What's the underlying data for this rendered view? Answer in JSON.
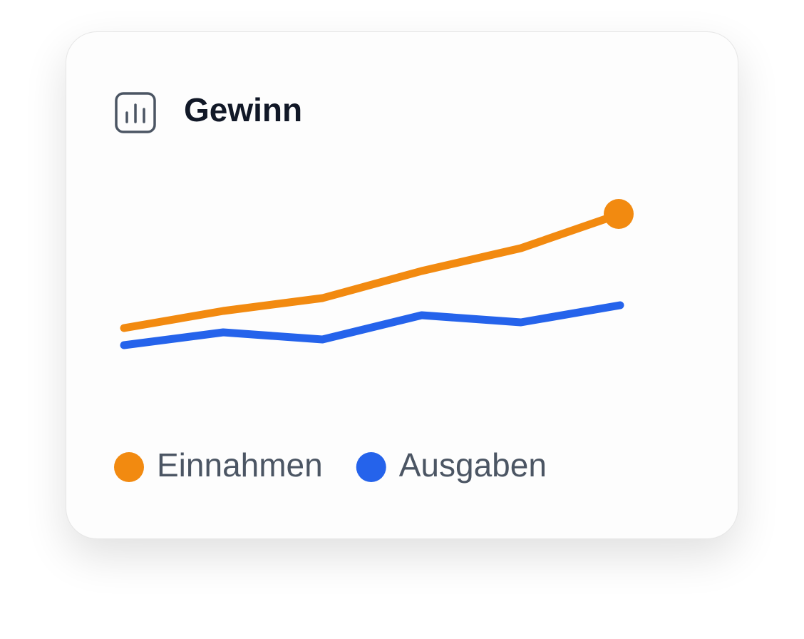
{
  "chart_data": {
    "type": "line",
    "title": "Gewinn",
    "series": [
      {
        "name": "Einnahmen",
        "color": "#f28a10",
        "values": [
          15,
          21,
          25.5,
          35,
          43,
          55
        ]
      },
      {
        "name": "Ausgaben",
        "color": "#2563eb",
        "values": [
          9,
          13.5,
          11,
          19.5,
          17,
          23
        ]
      }
    ]
  }
}
